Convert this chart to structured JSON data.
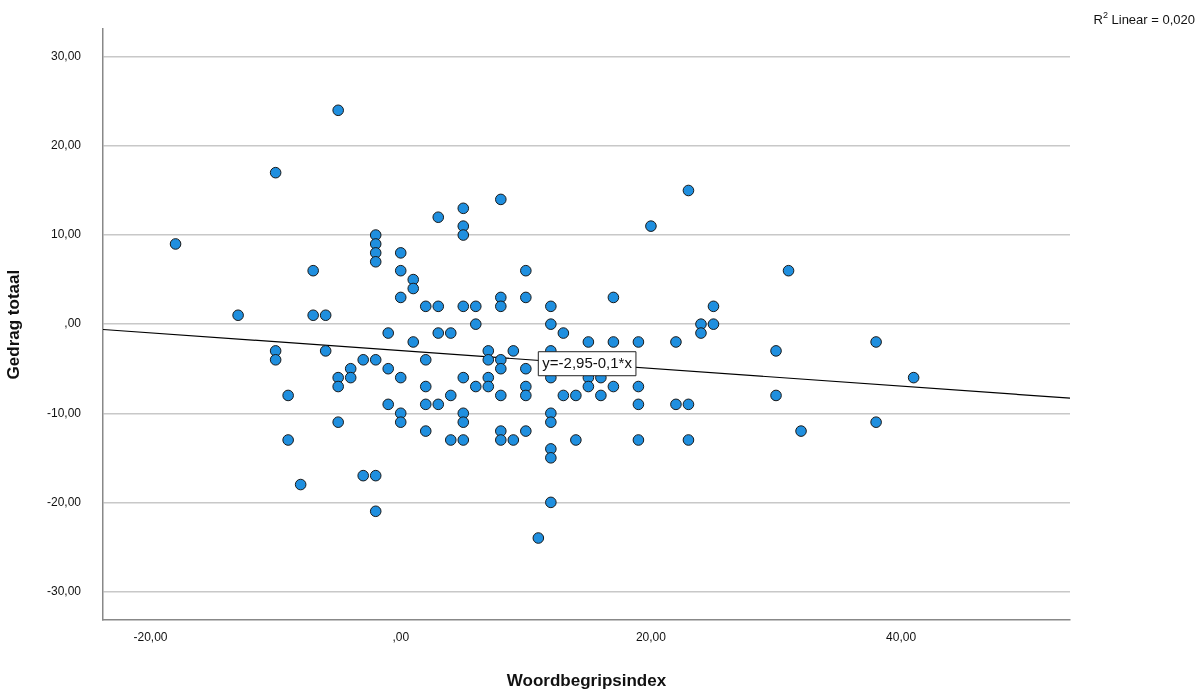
{
  "chart_data": {
    "type": "scatter",
    "xlabel": "Woordbegripsindex",
    "ylabel": "Gedrag totaal",
    "xlim": [
      -23.8,
      53.5
    ],
    "ylim": [
      -33.2,
      33.1
    ],
    "xticks": [
      {
        "value": -20,
        "label": "-20,00"
      },
      {
        "value": 0,
        "label": ",00"
      },
      {
        "value": 20,
        "label": "20,00"
      },
      {
        "value": 40,
        "label": "40,00"
      }
    ],
    "yticks": [
      {
        "value": -30,
        "label": "-30,00"
      },
      {
        "value": -20,
        "label": "-20,00"
      },
      {
        "value": -10,
        "label": "-10,00"
      },
      {
        "value": 0,
        "label": ",00"
      },
      {
        "value": 10,
        "label": "10,00"
      },
      {
        "value": 20,
        "label": "20,00"
      },
      {
        "value": 30,
        "label": "30,00"
      }
    ],
    "grid": "y",
    "series": [
      {
        "type": "scatter",
        "marker": "circle",
        "color": "#1f8fdf",
        "x": [
          -5,
          -10,
          3,
          -18,
          -2,
          -2,
          -2,
          -2,
          0,
          -7,
          0,
          1,
          1,
          0,
          2,
          3,
          -13,
          -7,
          -6,
          -1,
          1,
          3,
          -10,
          -10,
          -6,
          -3,
          -2,
          -4,
          -4,
          -5,
          -5,
          -1,
          0,
          2,
          2,
          -9,
          -1,
          0,
          0,
          2,
          3,
          -5,
          2,
          -9,
          -3,
          -2,
          -8,
          -2,
          5,
          5,
          5,
          8,
          23,
          20,
          10,
          8,
          8,
          10,
          17,
          5,
          6,
          12,
          25,
          6,
          12,
          24,
          25,
          24,
          4,
          13,
          15,
          17,
          19,
          22,
          7,
          7,
          8,
          8,
          9,
          10,
          12,
          12,
          5,
          7,
          7,
          6,
          15,
          15,
          16,
          17,
          19,
          4,
          8,
          10,
          10,
          13,
          14,
          16,
          19,
          22,
          23,
          5,
          5,
          12,
          12,
          8,
          10,
          4,
          5,
          8,
          9,
          14,
          19,
          23,
          12,
          12,
          12,
          11,
          31,
          38,
          30,
          41,
          30,
          38,
          32
        ],
        "values": [
          24,
          17,
          12,
          9,
          10,
          9,
          8,
          7,
          8,
          6,
          6,
          5,
          4,
          3,
          2,
          2,
          1,
          1,
          1,
          -1,
          -2,
          -1,
          -3,
          -4,
          -3,
          -4,
          -4,
          -5,
          -6,
          -6,
          -7,
          -5,
          -6,
          -4,
          -7,
          -8,
          -9,
          -10,
          -11,
          -9,
          -9,
          -11,
          -12,
          -13,
          -17,
          -17,
          -18,
          -21,
          13,
          11,
          10,
          14,
          15,
          11,
          6,
          3,
          2,
          3,
          3,
          2,
          2,
          2,
          2,
          0,
          0,
          0,
          0,
          -1,
          -1,
          -1,
          -2,
          -2,
          -2,
          -2,
          -3,
          -4,
          -4,
          -5,
          -3,
          -5,
          -3,
          -6,
          -6,
          -6,
          -7,
          -7,
          -6,
          -7,
          -6,
          -7,
          -7,
          -8,
          -8,
          -7,
          -8,
          -8,
          -8,
          -8,
          -9,
          -9,
          -9,
          -10,
          -11,
          -10,
          -11,
          -12,
          -12,
          -13,
          -13,
          -13,
          -13,
          -13,
          -13,
          -13,
          -14,
          -15,
          -20,
          -24,
          6,
          -2,
          -3,
          -6,
          -8,
          -11,
          -12
        ]
      },
      {
        "type": "line",
        "color": "#000000",
        "x": [
          -23.8,
          53.5
        ],
        "values": [
          -0.6,
          -8.3
        ]
      }
    ],
    "annotations": [
      "R$^{2}$ Linear = 0,020",
      {
        "text": "y=-2,95-0,1*x",
        "x": 14.9,
        "y": -4.44
      }
    ]
  }
}
